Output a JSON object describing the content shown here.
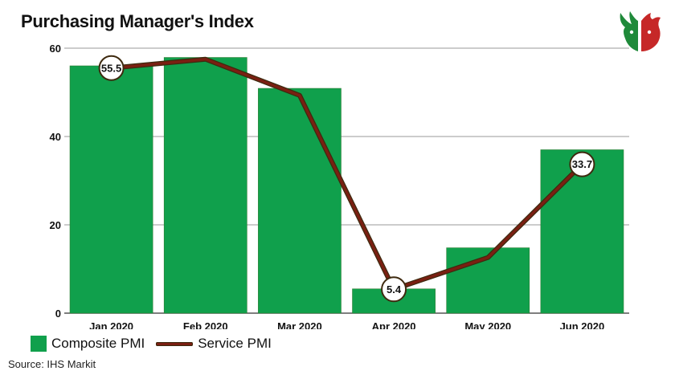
{
  "chart_data": {
    "type": "bar",
    "title": "Purchasing Manager's Index",
    "categories": [
      "Jan 2020",
      "Feb 2020",
      "Mar 2020",
      "Apr 2020",
      "May 2020",
      "Jun 2020"
    ],
    "series": [
      {
        "name": "Composite PMI",
        "type": "bar",
        "color": "#10a04c",
        "values": [
          56.0,
          57.9,
          50.9,
          5.5,
          14.8,
          37.0
        ]
      },
      {
        "name": "Service PMI",
        "type": "line",
        "color": "#7a1f12",
        "values": [
          55.5,
          57.5,
          49.3,
          5.4,
          12.6,
          33.7
        ]
      }
    ],
    "data_labels": [
      {
        "series": "Service PMI",
        "category": "Jan 2020",
        "text": "55.5"
      },
      {
        "series": "Service PMI",
        "category": "Apr 2020",
        "text": "5.4"
      },
      {
        "series": "Service PMI",
        "category": "Jun 2020",
        "text": "33.7"
      }
    ],
    "xlabel": "",
    "ylabel": "",
    "ylim": [
      0,
      60
    ],
    "yticks": [
      0,
      20,
      40,
      60
    ],
    "grid": true,
    "legend": "bottom-left"
  },
  "source": "Source: IHS Markit",
  "logo_icon": "bull-bear-logo-icon"
}
